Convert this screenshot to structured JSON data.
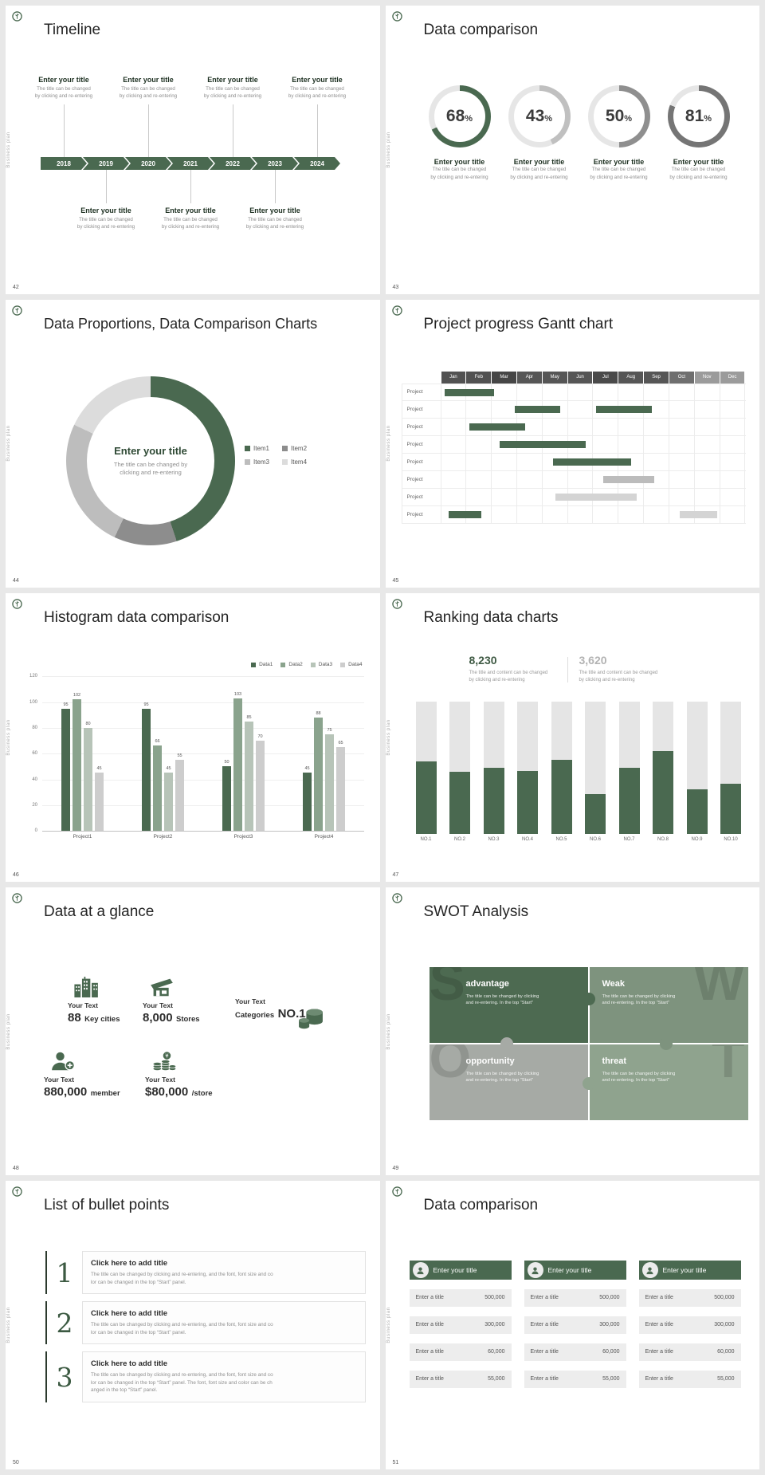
{
  "deck": {
    "side_label": "Business plan",
    "accent_color": "#4a6950"
  },
  "slides": {
    "timeline": {
      "number": "42",
      "title": "Timeline",
      "years": [
        "2018",
        "2019",
        "2020",
        "2021",
        "2022",
        "2023",
        "2024"
      ],
      "item_title": "Enter your title",
      "item_desc_lines": [
        "The title can be changed",
        "by clicking and re-entering"
      ]
    },
    "donuts": {
      "number": "43",
      "title": "Data comparison",
      "item_title": "Enter your title",
      "item_desc_lines": [
        "The title can be changed",
        "by clicking and re-entering"
      ],
      "chart_data": {
        "type": "donut-progress",
        "values": [
          68,
          43,
          50,
          81
        ],
        "unit": "%",
        "colors": [
          "#4a6950",
          "#c0c0c0",
          "#8f8f8f",
          "#757575"
        ],
        "track_color": "#e6e6e6"
      }
    },
    "proportions": {
      "number": "44",
      "title": "Data Proportions, Data Comparison Charts",
      "center_title": "Enter your title",
      "center_desc_lines": [
        "The title can be changed by",
        "clicking and re-entering"
      ],
      "chart_data": {
        "type": "pie",
        "labels": [
          "Item1",
          "Item2",
          "Item3",
          "Item4"
        ],
        "values": [
          45,
          12,
          25,
          18
        ],
        "colors": [
          "#4a6950",
          "#8d8d8d",
          "#bdbdbd",
          "#dcdcdc"
        ],
        "legend_position": "right"
      }
    },
    "gantt": {
      "number": "45",
      "title": "Project progress Gantt chart",
      "chart_data": {
        "type": "gantt",
        "months": [
          "Jan",
          "Feb",
          "Mar",
          "Apr",
          "May",
          "Jun",
          "Jul",
          "Aug",
          "Sep",
          "Oct",
          "Nov",
          "Dec"
        ],
        "header_colors": [
          "#525252",
          "#525252",
          "#464646",
          "#565656",
          "#565656",
          "#565656",
          "#4a4a4a",
          "#565656",
          "#565656",
          "#6f6f6f",
          "#9b9b9b",
          "#9b9b9b"
        ],
        "row_label": "Project",
        "rows": [
          [
            {
              "s": 0.15,
              "e": 2.1,
              "c": "#4a6950"
            }
          ],
          [
            {
              "s": 2.9,
              "e": 4.7,
              "c": "#4a6950"
            },
            {
              "s": 6.1,
              "e": 8.3,
              "c": "#4a6950"
            }
          ],
          [
            {
              "s": 1.1,
              "e": 3.3,
              "c": "#4a6950"
            }
          ],
          [
            {
              "s": 2.3,
              "e": 5.7,
              "c": "#4a6950"
            }
          ],
          [
            {
              "s": 4.4,
              "e": 7.5,
              "c": "#4a6950"
            }
          ],
          [
            {
              "s": 6.4,
              "e": 8.4,
              "c": "#bcbcbc"
            }
          ],
          [
            {
              "s": 4.5,
              "e": 7.7,
              "c": "#d4d4d4"
            }
          ],
          [
            {
              "s": 0.3,
              "e": 1.6,
              "c": "#4a6950"
            },
            {
              "s": 9.4,
              "e": 10.9,
              "c": "#d4d4d4"
            }
          ]
        ]
      }
    },
    "histogram": {
      "number": "46",
      "title": "Histogram data comparison",
      "chart_data": {
        "type": "bar",
        "categories": [
          "Project1",
          "Project2",
          "Project3",
          "Project4"
        ],
        "series": [
          {
            "name": "Data1",
            "values": [
              95,
              95,
              50,
              45
            ]
          },
          {
            "name": "Data2",
            "values": [
              102,
              66,
              103,
              88
            ]
          },
          {
            "name": "Data3",
            "values": [
              80,
              45,
              85,
              75
            ]
          },
          {
            "name": "Data4",
            "values": [
              45,
              55,
              70,
              65
            ]
          }
        ],
        "colors": [
          "#4a6950",
          "#8aa38d",
          "#b7c4b8",
          "#cdcdcd"
        ],
        "ylim": [
          0,
          120
        ],
        "yticks": [
          0,
          20,
          40,
          60,
          80,
          100,
          120
        ],
        "legend_position": "top-right"
      }
    },
    "ranking": {
      "number": "47",
      "title": "Ranking data charts",
      "stat_primary": {
        "value": "8,230",
        "desc_lines": [
          "The title and content can be changed",
          "by clicking and re-entering"
        ]
      },
      "stat_secondary": {
        "value": "3,620",
        "desc_lines": [
          "The title and content can be changed",
          "by clicking and re-entering"
        ]
      },
      "chart_data": {
        "type": "bar",
        "categories": [
          "NO.1",
          "NO.2",
          "NO.3",
          "NO.4",
          "NO.5",
          "NO.6",
          "NO.7",
          "NO.8",
          "NO.9",
          "NO.10"
        ],
        "values": [
          55,
          47,
          50,
          48,
          56,
          30,
          50,
          63,
          34,
          38
        ],
        "max": 100,
        "bar_color": "#4a6950",
        "track_color": "#e5e5e5"
      }
    },
    "glance": {
      "number": "48",
      "title": "Data at a glance",
      "items": [
        {
          "icon": "city-icon",
          "label": "Your Text",
          "value": "88",
          "unit": "Key cities"
        },
        {
          "icon": "store-icon",
          "label": "Your Text",
          "value": "8,000",
          "unit": "Stores"
        },
        {
          "icon": "category-icon",
          "label": "Your Text",
          "prefix": "Categories",
          "value": "NO.1"
        },
        {
          "icon": "member-icon",
          "label": "Your Text",
          "value": "880,000",
          "unit": "member"
        },
        {
          "icon": "money-icon",
          "label": "Your Text",
          "value": "$80,000",
          "unit": "/store"
        }
      ]
    },
    "swot": {
      "number": "49",
      "title": "SWOT Analysis",
      "cells": [
        {
          "letter": "S",
          "letter_side": "left",
          "heading": "advantage",
          "color": "#4d6a51",
          "desc_lines": [
            "The title can be changed by clicking",
            "and re-entering. In the top “Start”"
          ]
        },
        {
          "letter": "W",
          "letter_side": "right",
          "heading": "Weak",
          "color": "#7e937e",
          "desc_lines": [
            "The title can be changed by clicking",
            "and re-entering. In the top “Start”"
          ]
        },
        {
          "letter": "O",
          "letter_side": "left",
          "heading": "opportunity",
          "color": "#a6aaa5",
          "desc_lines": [
            "The title can be changed by clicking",
            "and re-entering. In the top “Start”"
          ]
        },
        {
          "letter": "T",
          "letter_side": "right",
          "heading": "threat",
          "color": "#8fa38e",
          "desc_lines": [
            "The title can be changed by clicking",
            "and re-entering. In the top “Start”"
          ]
        }
      ]
    },
    "bullets": {
      "number": "50",
      "title": "List of bullet points",
      "items": [
        {
          "num": "1",
          "heading": "Click here to add title",
          "desc_lines": [
            "The title can be changed by clicking and re-entering, and the font, font size and co",
            "lor can be changed in the top “Start” panel."
          ]
        },
        {
          "num": "2",
          "heading": "Click here to add title",
          "desc_lines": [
            "The title can be changed by clicking and re-entering, and the font, font size and co",
            "lor can be changed in the top “Start” panel."
          ]
        },
        {
          "num": "3",
          "heading": "Click here to add title",
          "desc_lines": [
            "The title can be changed by clicking and re-entering, and the font, font size and co",
            "lor can be changed in the top “Start” panel. The font, font size and color can be ch",
            "anged in the top “Start” panel."
          ]
        }
      ]
    },
    "tables": {
      "number": "51",
      "title": "Data comparison",
      "cards": [
        {
          "header": "Enter your title",
          "rows": [
            {
              "label": "Enter a title",
              "value": "500,000"
            },
            {
              "label": "Enter a title",
              "value": "300,000"
            },
            {
              "label": "Enter a title",
              "value": "60,000"
            },
            {
              "label": "Enter a title",
              "value": "55,000"
            }
          ]
        },
        {
          "header": "Enter your title",
          "rows": [
            {
              "label": "Enter a title",
              "value": "500,000"
            },
            {
              "label": "Enter a title",
              "value": "300,000"
            },
            {
              "label": "Enter a title",
              "value": "60,000"
            },
            {
              "label": "Enter a title",
              "value": "55,000"
            }
          ]
        },
        {
          "header": "Enter your title",
          "rows": [
            {
              "label": "Enter a title",
              "value": "500,000"
            },
            {
              "label": "Enter a title",
              "value": "300,000"
            },
            {
              "label": "Enter a title",
              "value": "60,000"
            },
            {
              "label": "Enter a title",
              "value": "55,000"
            }
          ]
        }
      ]
    }
  }
}
